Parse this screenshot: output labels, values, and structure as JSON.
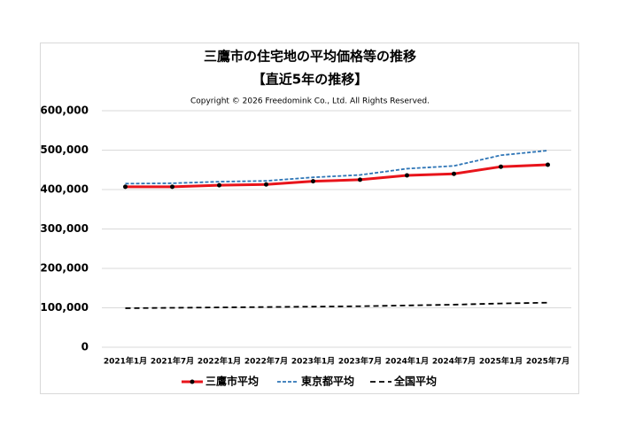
{
  "chart_data": {
    "type": "line",
    "title": "三鷹市の住宅地の平均価格等の推移",
    "subtitle": "【直近5年の推移】",
    "copyright": "Copyright © 2026 Freedomink Co., Ltd. All Rights Reserved.",
    "categories": [
      "2021年1月",
      "2021年7月",
      "2022年1月",
      "2022年7月",
      "2023年1月",
      "2023年7月",
      "2024年1月",
      "2024年7月",
      "2025年1月",
      "2025年7月"
    ],
    "series": [
      {
        "name": "三鷹市平均",
        "color": "#e8141b",
        "line_style": "solid",
        "marker": true,
        "values": [
          407000,
          407000,
          411000,
          413000,
          421000,
          425000,
          436000,
          440000,
          458000,
          463000
        ]
      },
      {
        "name": "東京都平均",
        "color": "#2e75b6",
        "line_style": "dashed",
        "marker": false,
        "values": [
          415000,
          416000,
          420000,
          422000,
          431000,
          437000,
          453000,
          460000,
          487000,
          499000
        ]
      },
      {
        "name": "全国平均",
        "color": "#000000",
        "line_style": "dashed",
        "marker": false,
        "values": [
          99000,
          100000,
          101000,
          102000,
          103000,
          104000,
          106000,
          108000,
          111000,
          113000
        ]
      }
    ],
    "ylim": [
      0,
      600000
    ],
    "yticks": [
      0,
      {
        "value": 100000,
        "label": "100,000"
      },
      {
        "value": 200000,
        "label": "200,000"
      },
      {
        "value": 300000,
        "label": "300,000"
      },
      {
        "value": 400000,
        "label": "400,000"
      },
      {
        "value": 500000,
        "label": "500,000"
      },
      {
        "value": 600000,
        "label": "600,000"
      }
    ],
    "grid": true,
    "legend": "bottom"
  }
}
